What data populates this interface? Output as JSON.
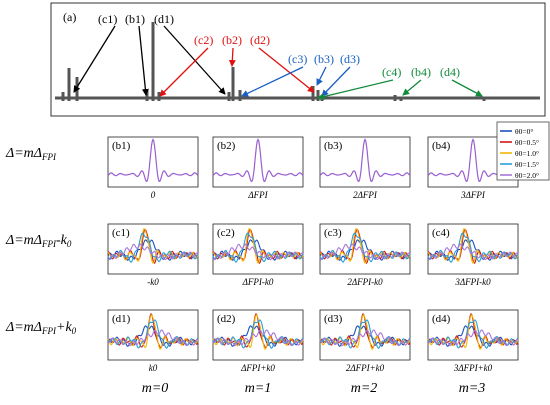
{
  "panel_a": {
    "label": "(a)",
    "annotations": [
      {
        "text": "(c1)",
        "color": "#000000"
      },
      {
        "text": "(b1)",
        "color": "#000000"
      },
      {
        "text": "(d1)",
        "color": "#000000"
      },
      {
        "text": "(c2)",
        "color": "#e01010"
      },
      {
        "text": "(b2)",
        "color": "#e01010"
      },
      {
        "text": "(d2)",
        "color": "#e01010"
      },
      {
        "text": "(c3)",
        "color": "#1a5fc4"
      },
      {
        "text": "(b3)",
        "color": "#1a5fc4"
      },
      {
        "text": "(d3)",
        "color": "#1a5fc4"
      },
      {
        "text": "(c4)",
        "color": "#108a3a"
      },
      {
        "text": "(b4)",
        "color": "#108a3a"
      },
      {
        "text": "(d4)",
        "color": "#108a3a"
      }
    ]
  },
  "row_labels": [
    {
      "main": "Δ=mΔ",
      "sub": "FPI",
      "tail": ""
    },
    {
      "main": "Δ=mΔ",
      "sub": "FPI",
      "tail": "-k",
      "tail_sub": "0"
    },
    {
      "main": "Δ=mΔ",
      "sub": "FPI",
      "tail": "+k",
      "tail_sub": "0"
    }
  ],
  "subplots": {
    "b": [
      {
        "label": "(b1)",
        "x_caption": "0"
      },
      {
        "label": "(b2)",
        "x_caption": "ΔFPI"
      },
      {
        "label": "(b3)",
        "x_caption": "2ΔFPI"
      },
      {
        "label": "(b4)",
        "x_caption": "3ΔFPI"
      }
    ],
    "c": [
      {
        "label": "(c1)",
        "x_caption": "-k0"
      },
      {
        "label": "(c2)",
        "x_caption": "ΔFPI-k0"
      },
      {
        "label": "(c3)",
        "x_caption": "2ΔFPI-k0"
      },
      {
        "label": "(c4)",
        "x_caption": "3ΔFPI-k0"
      }
    ],
    "d": [
      {
        "label": "(d1)",
        "x_caption": "k0"
      },
      {
        "label": "(d2)",
        "x_caption": "ΔFPI+k0"
      },
      {
        "label": "(d3)",
        "x_caption": "2ΔFPI+k0"
      },
      {
        "label": "(d4)",
        "x_caption": "3ΔFPI+k0"
      }
    ]
  },
  "m_labels": [
    "m=0",
    "m=1",
    "m=2",
    "m=3"
  ],
  "legend": {
    "entries": [
      {
        "label": "θ0=0°",
        "color": "#1f4fbf"
      },
      {
        "label": "θ0=0.5°",
        "color": "#d01818"
      },
      {
        "label": "θ0=1.0°",
        "color": "#f2b705"
      },
      {
        "label": "θ0=1.5°",
        "color": "#2aa0d8"
      },
      {
        "label": "θ0=2.0°",
        "color": "#a878d8"
      }
    ]
  },
  "colors": {
    "spectrum": "#555555",
    "purple_trace": "#9a5fd0",
    "frame": "#222222"
  }
}
